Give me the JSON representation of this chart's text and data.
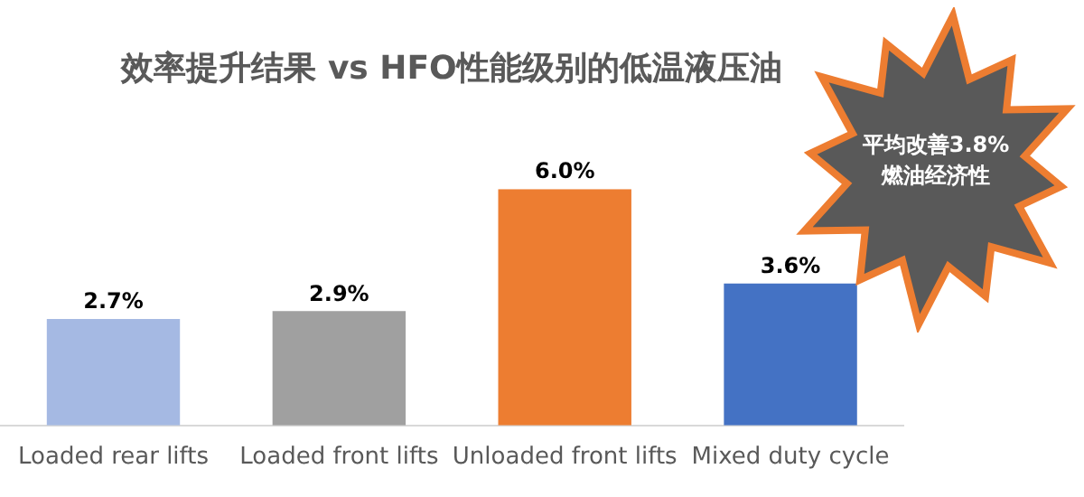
{
  "chart_data": {
    "type": "bar",
    "title": "效率提升结果 vs HFO性能级别的低温液压油",
    "categories": [
      "Loaded rear lifts",
      "Loaded front lifts",
      "Unloaded front lifts",
      "Mixed duty cycle"
    ],
    "values": [
      2.7,
      2.9,
      6.0,
      3.6
    ],
    "colors": [
      "#a5b9e3",
      "#a0a0a0",
      "#ed7d31",
      "#4472c4"
    ],
    "value_labels": [
      "2.7%",
      "2.9%",
      "6.0%",
      "3.6%"
    ],
    "grid": false,
    "legend": false,
    "annotations": [
      "平均改善3.8%\n燃油经济性"
    ]
  }
}
